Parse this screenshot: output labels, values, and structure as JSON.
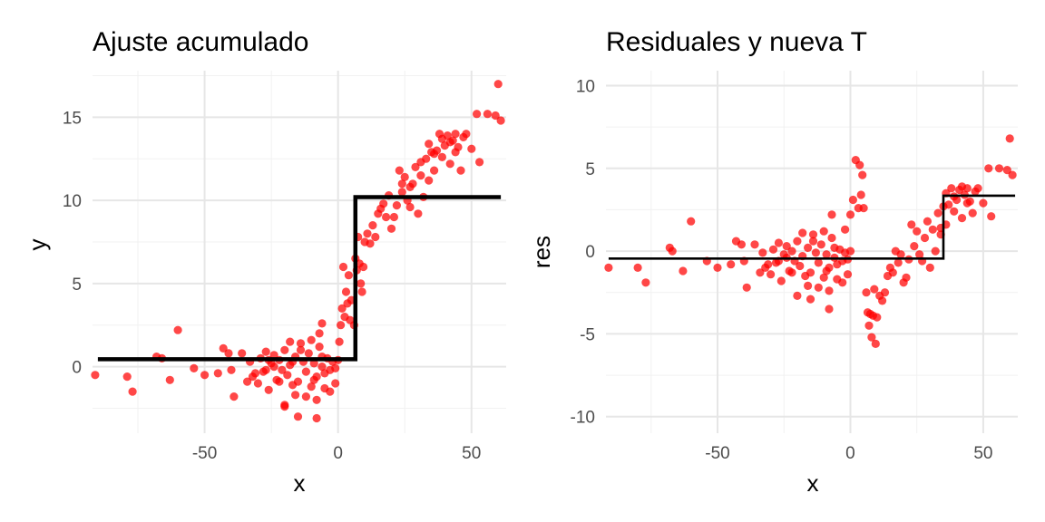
{
  "colors": {
    "points": "#ff0000",
    "fit_line": "#000000",
    "grid": "#e6e6e6",
    "tick_text": "#4d4d4d"
  },
  "chart_data": [
    {
      "type": "scatter",
      "title": "Ajuste acumulado",
      "xlabel": "x",
      "ylabel": "y",
      "xlim": [
        -92,
        63
      ],
      "ylim": [
        -4,
        17.8
      ],
      "x_ticks": [
        -50,
        0,
        50
      ],
      "x_tick_labels": [
        "-50",
        "0",
        "50"
      ],
      "y_ticks": [
        0,
        5,
        10,
        15
      ],
      "y_tick_labels": [
        "0",
        "5",
        "10",
        "15"
      ],
      "grid": true,
      "legend": "none",
      "points": [
        {
          "x": -91,
          "y": -0.5
        },
        {
          "x": -79,
          "y": -0.6
        },
        {
          "x": -77,
          "y": -1.5
        },
        {
          "x": -68,
          "y": 0.6
        },
        {
          "x": -66,
          "y": 0.5
        },
        {
          "x": -63,
          "y": -0.8
        },
        {
          "x": -60,
          "y": 2.2
        },
        {
          "x": -54,
          "y": -0.1
        },
        {
          "x": -50,
          "y": -0.5
        },
        {
          "x": -45,
          "y": -0.4
        },
        {
          "x": -43,
          "y": 1.1
        },
        {
          "x": -41,
          "y": 0.8
        },
        {
          "x": -40,
          "y": -0.2
        },
        {
          "x": -39,
          "y": -1.8
        },
        {
          "x": -36,
          "y": 0.8
        },
        {
          "x": -34,
          "y": -0.9
        },
        {
          "x": -33,
          "y": 0.3
        },
        {
          "x": -31,
          "y": -0.4
        },
        {
          "x": -30,
          "y": -1.0
        },
        {
          "x": -29,
          "y": 0.5
        },
        {
          "x": -28,
          "y": -0.3
        },
        {
          "x": -27,
          "y": 0.9
        },
        {
          "x": -26,
          "y": -1.4
        },
        {
          "x": -25,
          "y": 0.2
        },
        {
          "x": -24,
          "y": 0.7
        },
        {
          "x": -23,
          "y": -0.8
        },
        {
          "x": -22,
          "y": 0.4
        },
        {
          "x": -21,
          "y": -0.2
        },
        {
          "x": -20,
          "y": 1.0
        },
        {
          "x": -19,
          "y": -0.5
        },
        {
          "x": -18,
          "y": 0.1
        },
        {
          "x": -17,
          "y": -1.1
        },
        {
          "x": -16,
          "y": 0.6
        },
        {
          "x": -15,
          "y": -0.9
        },
        {
          "x": -14,
          "y": 1.4
        },
        {
          "x": -13,
          "y": 0.3
        },
        {
          "x": -12,
          "y": -0.3
        },
        {
          "x": -11,
          "y": 0.8
        },
        {
          "x": -10,
          "y": -1.2
        },
        {
          "x": -9,
          "y": 0.2
        },
        {
          "x": -8,
          "y": -0.6
        },
        {
          "x": -7,
          "y": 1.2
        },
        {
          "x": -6,
          "y": 0.0
        },
        {
          "x": -5,
          "y": -0.4
        },
        {
          "x": -4,
          "y": 0.5
        },
        {
          "x": -3,
          "y": -0.2
        },
        {
          "x": -2,
          "y": 0.3
        },
        {
          "x": -1,
          "y": -1.0
        },
        {
          "x": 0,
          "y": 0.4
        },
        {
          "x": -20,
          "y": -2.3
        },
        {
          "x": -16,
          "y": -1.7
        },
        {
          "x": -12,
          "y": -1.8
        },
        {
          "x": -8,
          "y": -2.0
        },
        {
          "x": -5,
          "y": -1.3
        },
        {
          "x": -3,
          "y": -1.5
        },
        {
          "x": -18,
          "y": 1.5
        },
        {
          "x": -14,
          "y": 1.0
        },
        {
          "x": -10,
          "y": 1.6
        },
        {
          "x": -7,
          "y": 2.0
        },
        {
          "x": -24,
          "y": 0.0
        },
        {
          "x": -32,
          "y": -0.6
        },
        {
          "x": -27,
          "y": -0.2
        },
        {
          "x": -22,
          "y": -0.9
        },
        {
          "x": -9,
          "y": -0.8
        },
        {
          "x": -6,
          "y": 0.6
        },
        {
          "x": -1,
          "y": -0.1
        },
        {
          "x": -15,
          "y": -3.0
        },
        {
          "x": -8,
          "y": -3.1
        },
        {
          "x": -6,
          "y": 2.6
        },
        {
          "x": -20,
          "y": -2.4
        },
        {
          "x": -26,
          "y": 0.4
        },
        {
          "x": -17,
          "y": 0.3
        },
        {
          "x": 0.5,
          "y": 1.5
        },
        {
          "x": 1,
          "y": 2.5
        },
        {
          "x": 1.5,
          "y": 3.5
        },
        {
          "x": 2,
          "y": 6.0
        },
        {
          "x": 2.5,
          "y": 3.0
        },
        {
          "x": 3,
          "y": 4.5
        },
        {
          "x": 3.5,
          "y": 3.8
        },
        {
          "x": 4,
          "y": 5.5
        },
        {
          "x": 4.5,
          "y": 2.8
        },
        {
          "x": 5,
          "y": 4.0
        },
        {
          "x": 6,
          "y": 2.5
        },
        {
          "x": 6.5,
          "y": 6.5
        },
        {
          "x": 7,
          "y": 5.8
        },
        {
          "x": 7.5,
          "y": 7.8
        },
        {
          "x": 8,
          "y": 6.2
        },
        {
          "x": 8.5,
          "y": 5.0
        },
        {
          "x": 9,
          "y": 4.5
        },
        {
          "x": 9.5,
          "y": 6.0
        },
        {
          "x": 10,
          "y": 7.5
        },
        {
          "x": 11,
          "y": 8.0
        },
        {
          "x": 12,
          "y": 7.4
        },
        {
          "x": 13,
          "y": 8.5
        },
        {
          "x": 14,
          "y": 7.8
        },
        {
          "x": 15,
          "y": 9.2
        },
        {
          "x": 16,
          "y": 9.5
        },
        {
          "x": 17,
          "y": 9.8
        },
        {
          "x": 18,
          "y": 9.0
        },
        {
          "x": 19,
          "y": 10.3
        },
        {
          "x": 20,
          "y": 8.3
        },
        {
          "x": 21,
          "y": 9.0
        },
        {
          "x": 22,
          "y": 9.7
        },
        {
          "x": 23,
          "y": 11.8
        },
        {
          "x": 24,
          "y": 10.5
        },
        {
          "x": 25,
          "y": 11.4
        },
        {
          "x": 26,
          "y": 10.0
        },
        {
          "x": 27,
          "y": 9.6
        },
        {
          "x": 28,
          "y": 11.0
        },
        {
          "x": 29,
          "y": 12.0
        },
        {
          "x": 30,
          "y": 9.2
        },
        {
          "x": 31,
          "y": 11.5
        },
        {
          "x": 32,
          "y": 10.2
        },
        {
          "x": 33,
          "y": 12.5
        },
        {
          "x": 34,
          "y": 11.2
        },
        {
          "x": 35,
          "y": 12.9
        },
        {
          "x": 36,
          "y": 11.8
        },
        {
          "x": 37,
          "y": 13.0
        },
        {
          "x": 38,
          "y": 14.0
        },
        {
          "x": 39,
          "y": 12.6
        },
        {
          "x": 40,
          "y": 13.3
        },
        {
          "x": 41,
          "y": 13.9
        },
        {
          "x": 42,
          "y": 12.2
        },
        {
          "x": 43,
          "y": 13.6
        },
        {
          "x": 44,
          "y": 14.0
        },
        {
          "x": 45,
          "y": 13.2
        },
        {
          "x": 46,
          "y": 11.8
        },
        {
          "x": 47,
          "y": 13.8
        },
        {
          "x": 48,
          "y": 14.0
        },
        {
          "x": 50,
          "y": 13.1
        },
        {
          "x": 52,
          "y": 15.2
        },
        {
          "x": 53,
          "y": 12.3
        },
        {
          "x": 56,
          "y": 15.2
        },
        {
          "x": 59,
          "y": 15.1
        },
        {
          "x": 60,
          "y": 17.0
        },
        {
          "x": 61,
          "y": 14.8
        },
        {
          "x": 24,
          "y": 11.0
        },
        {
          "x": 27,
          "y": 10.8
        },
        {
          "x": 31,
          "y": 12.3
        },
        {
          "x": 34,
          "y": 13.4
        },
        {
          "x": 36,
          "y": 12.8
        },
        {
          "x": 39,
          "y": 13.7
        },
        {
          "x": 42,
          "y": 13.5
        },
        {
          "x": 44,
          "y": 12.9
        }
      ],
      "step_fit": {
        "split": 6.5,
        "left_value": 0.45,
        "right_value": 10.2,
        "x_start": -90,
        "x_end": 61
      }
    },
    {
      "type": "scatter",
      "title": "Residuales y nueva T",
      "xlabel": "x",
      "ylabel": "res",
      "xlim": [
        -92,
        63
      ],
      "ylim": [
        -11,
        10.9
      ],
      "x_ticks": [
        -50,
        0,
        50
      ],
      "x_tick_labels": [
        "-50",
        "0",
        "50"
      ],
      "y_ticks": [
        -10,
        -5,
        0,
        5,
        10
      ],
      "y_tick_labels": [
        "-10",
        "-5",
        "0",
        "5",
        "10"
      ],
      "grid": true,
      "legend": "none",
      "points": [
        {
          "x": -91,
          "y": -1.0
        },
        {
          "x": -80,
          "y": -1.0
        },
        {
          "x": -77,
          "y": -1.9
        },
        {
          "x": -68,
          "y": 0.2
        },
        {
          "x": -67,
          "y": 0.0
        },
        {
          "x": -63,
          "y": -1.2
        },
        {
          "x": -60,
          "y": 1.8
        },
        {
          "x": -54,
          "y": -0.6
        },
        {
          "x": -50,
          "y": -1.0
        },
        {
          "x": -45,
          "y": -0.8
        },
        {
          "x": -43,
          "y": 0.6
        },
        {
          "x": -41,
          "y": 0.4
        },
        {
          "x": -40,
          "y": -0.6
        },
        {
          "x": -39,
          "y": -2.2
        },
        {
          "x": -36,
          "y": 0.4
        },
        {
          "x": -34,
          "y": -1.3
        },
        {
          "x": -33,
          "y": -0.1
        },
        {
          "x": -31,
          "y": -0.8
        },
        {
          "x": -30,
          "y": -1.4
        },
        {
          "x": -29,
          "y": 0.1
        },
        {
          "x": -28,
          "y": -0.7
        },
        {
          "x": -27,
          "y": 0.5
        },
        {
          "x": -26,
          "y": -1.8
        },
        {
          "x": -25,
          "y": -0.2
        },
        {
          "x": -24,
          "y": 0.3
        },
        {
          "x": -23,
          "y": -1.2
        },
        {
          "x": -22,
          "y": 0.0
        },
        {
          "x": -21,
          "y": -0.6
        },
        {
          "x": -20,
          "y": 0.6
        },
        {
          "x": -19,
          "y": -0.9
        },
        {
          "x": -18,
          "y": -0.3
        },
        {
          "x": -17,
          "y": -1.5
        },
        {
          "x": -16,
          "y": 0.2
        },
        {
          "x": -15,
          "y": -1.3
        },
        {
          "x": -14,
          "y": 1.0
        },
        {
          "x": -13,
          "y": -0.1
        },
        {
          "x": -12,
          "y": -0.7
        },
        {
          "x": -11,
          "y": 0.4
        },
        {
          "x": -10,
          "y": -1.6
        },
        {
          "x": -9,
          "y": -0.2
        },
        {
          "x": -8,
          "y": -1.0
        },
        {
          "x": -7,
          "y": 0.8
        },
        {
          "x": -6,
          "y": -0.4
        },
        {
          "x": -5,
          "y": -0.8
        },
        {
          "x": -4,
          "y": 0.1
        },
        {
          "x": -3,
          "y": -0.6
        },
        {
          "x": -2,
          "y": -0.1
        },
        {
          "x": -1,
          "y": -1.4
        },
        {
          "x": 0,
          "y": 0.0
        },
        {
          "x": -20,
          "y": -2.7
        },
        {
          "x": -16,
          "y": -2.1
        },
        {
          "x": -12,
          "y": -2.2
        },
        {
          "x": -8,
          "y": -2.4
        },
        {
          "x": -5,
          "y": -1.7
        },
        {
          "x": -3,
          "y": -1.9
        },
        {
          "x": -18,
          "y": 1.1
        },
        {
          "x": -14,
          "y": 0.6
        },
        {
          "x": -10,
          "y": 1.2
        },
        {
          "x": -7,
          "y": 2.2
        },
        {
          "x": -24,
          "y": -0.4
        },
        {
          "x": -32,
          "y": -1.0
        },
        {
          "x": -27,
          "y": -0.6
        },
        {
          "x": -22,
          "y": -1.3
        },
        {
          "x": -9,
          "y": -1.2
        },
        {
          "x": -6,
          "y": 0.2
        },
        {
          "x": -1,
          "y": -0.5
        },
        {
          "x": -15,
          "y": -2.9
        },
        {
          "x": -8,
          "y": -3.5
        },
        {
          "x": -2,
          "y": 1.3
        },
        {
          "x": 0,
          "y": 2.2
        },
        {
          "x": 1,
          "y": 3.1
        },
        {
          "x": 2,
          "y": 5.5
        },
        {
          "x": 3,
          "y": 2.6
        },
        {
          "x": 3.5,
          "y": 5.2
        },
        {
          "x": 4,
          "y": 3.4
        },
        {
          "x": 4.5,
          "y": 4.6
        },
        {
          "x": 5,
          "y": 2.6
        },
        {
          "x": 6,
          "y": -2.5
        },
        {
          "x": 6.5,
          "y": -3.7
        },
        {
          "x": 7,
          "y": -4.5
        },
        {
          "x": 7.5,
          "y": -3.8
        },
        {
          "x": 8,
          "y": -5.2
        },
        {
          "x": 8.5,
          "y": -3.9
        },
        {
          "x": 9,
          "y": -2.3
        },
        {
          "x": 9.5,
          "y": -5.6
        },
        {
          "x": 10,
          "y": -4.0
        },
        {
          "x": 11,
          "y": -2.7
        },
        {
          "x": 12,
          "y": -3.0
        },
        {
          "x": 13,
          "y": -2.5
        },
        {
          "x": 14,
          "y": -1.5
        },
        {
          "x": 15,
          "y": -1.0
        },
        {
          "x": 16,
          "y": -1.3
        },
        {
          "x": 17,
          "y": 0.0
        },
        {
          "x": 18,
          "y": -0.7
        },
        {
          "x": 19,
          "y": -0.2
        },
        {
          "x": 20,
          "y": -1.9
        },
        {
          "x": 21,
          "y": -1.6
        },
        {
          "x": 22,
          "y": -0.5
        },
        {
          "x": 23,
          "y": 1.6
        },
        {
          "x": 24,
          "y": 0.3
        },
        {
          "x": 25,
          "y": 1.2
        },
        {
          "x": 26,
          "y": -0.2
        },
        {
          "x": 27,
          "y": -0.6
        },
        {
          "x": 28,
          "y": 0.8
        },
        {
          "x": 29,
          "y": 1.8
        },
        {
          "x": 30,
          "y": -1.0
        },
        {
          "x": 31,
          "y": 1.3
        },
        {
          "x": 32,
          "y": 0.0
        },
        {
          "x": 33,
          "y": 2.3
        },
        {
          "x": 34,
          "y": 1.0
        },
        {
          "x": 35,
          "y": 2.7
        },
        {
          "x": 36,
          "y": 1.6
        },
        {
          "x": 37,
          "y": 2.8
        },
        {
          "x": 38,
          "y": 3.8
        },
        {
          "x": 39,
          "y": 2.4
        },
        {
          "x": 40,
          "y": 3.1
        },
        {
          "x": 41,
          "y": 3.7
        },
        {
          "x": 42,
          "y": 2.0
        },
        {
          "x": 43,
          "y": 3.4
        },
        {
          "x": 44,
          "y": 3.8
        },
        {
          "x": 45,
          "y": 3.0
        },
        {
          "x": 46,
          "y": 2.3
        },
        {
          "x": 47,
          "y": 3.6
        },
        {
          "x": 48,
          "y": 3.8
        },
        {
          "x": 50,
          "y": 2.9
        },
        {
          "x": 52,
          "y": 5.0
        },
        {
          "x": 53,
          "y": 2.1
        },
        {
          "x": 56,
          "y": 5.0
        },
        {
          "x": 59,
          "y": 4.9
        },
        {
          "x": 60,
          "y": 6.8
        },
        {
          "x": 61,
          "y": 4.6
        },
        {
          "x": 36,
          "y": 3.5
        },
        {
          "x": 39,
          "y": 3.3
        },
        {
          "x": 42,
          "y": 3.9
        },
        {
          "x": 44,
          "y": 2.9
        },
        {
          "x": 34,
          "y": 1.4
        }
      ],
      "step_fit": {
        "split": 35,
        "left_value": -0.45,
        "right_value": 3.35,
        "x_start": -91,
        "x_end": 62
      }
    }
  ]
}
